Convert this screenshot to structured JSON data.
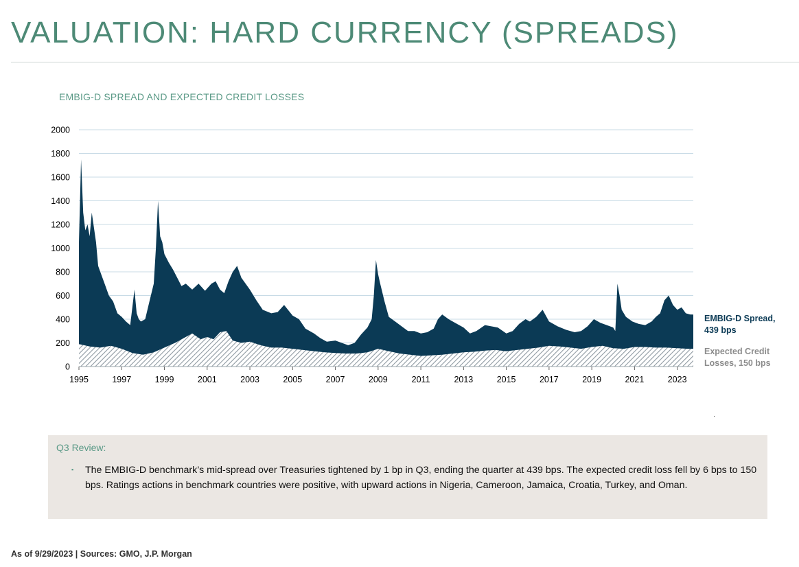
{
  "page": {
    "title": "VALUATION: HARD CURRENCY (SPREADS)",
    "footer": "As of 9/29/2023 | Sources: GMO, J.P. Morgan"
  },
  "colors": {
    "title": "#4d8a76",
    "accent_green": "#5b9a87",
    "spread_fill": "#0b3a55",
    "ecl_hatch": "#8f9aa2",
    "grid": "#c8dbe6",
    "review_bg": "#ebe7e3",
    "ecl_label": "#8c8c8c"
  },
  "review": {
    "title": "Q3 Review:",
    "bullet": "▪",
    "text": "The EMBIG-D benchmark’s mid-spread over Treasuries tightened by 1 bp in Q3, ending the quarter at 439 bps. The expected credit loss fell by 6 bps to 150 bps. Ratings actions in benchmark countries were positive, with upward actions in Nigeria, Cameroon, Jamaica, Croatia, Turkey, and Oman."
  },
  "chart_data": {
    "type": "area",
    "title": "EMBIG-D SPREAD AND EXPECTED CREDIT LOSSES",
    "xlabel": "",
    "ylabel": "",
    "xlim": [
      1995.0,
      2023.75
    ],
    "ylim": [
      0,
      2000
    ],
    "yticks": [
      0,
      200,
      400,
      600,
      800,
      1000,
      1200,
      1400,
      1600,
      1800,
      2000
    ],
    "xticks": [
      1995,
      1997,
      1999,
      2001,
      2003,
      2005,
      2007,
      2009,
      2011,
      2013,
      2015,
      2017,
      2019,
      2021,
      2023
    ],
    "grid": "horizontal",
    "series": [
      {
        "name": "EMBIG-D Spread",
        "end_label": [
          "EMBIG-D Spread,",
          "439 bps"
        ],
        "style": "solid",
        "x": [
          1995.0,
          1995.1,
          1995.2,
          1995.3,
          1995.4,
          1995.5,
          1995.6,
          1995.8,
          1995.9,
          1996.0,
          1996.2,
          1996.4,
          1996.6,
          1996.8,
          1997.0,
          1997.2,
          1997.4,
          1997.6,
          1997.7,
          1997.8,
          1997.9,
          1998.1,
          1998.3,
          1998.5,
          1998.6,
          1998.7,
          1998.8,
          1998.9,
          1999.0,
          1999.2,
          1999.4,
          1999.6,
          1999.8,
          2000.0,
          2000.3,
          2000.6,
          2000.9,
          2001.2,
          2001.4,
          2001.6,
          2001.8,
          2002.0,
          2002.2,
          2002.4,
          2002.6,
          2002.8,
          2003.0,
          2003.3,
          2003.6,
          2004.0,
          2004.3,
          2004.6,
          2005.0,
          2005.3,
          2005.6,
          2006.0,
          2006.3,
          2006.6,
          2007.0,
          2007.3,
          2007.6,
          2007.9,
          2008.2,
          2008.5,
          2008.7,
          2008.8,
          2008.9,
          2009.0,
          2009.1,
          2009.3,
          2009.5,
          2009.8,
          2010.1,
          2010.4,
          2010.7,
          2011.0,
          2011.3,
          2011.6,
          2011.8,
          2012.0,
          2012.3,
          2012.6,
          2013.0,
          2013.3,
          2013.6,
          2014.0,
          2014.3,
          2014.6,
          2015.0,
          2015.3,
          2015.6,
          2015.9,
          2016.1,
          2016.4,
          2016.7,
          2017.0,
          2017.4,
          2017.8,
          2018.2,
          2018.5,
          2018.8,
          2019.1,
          2019.4,
          2019.7,
          2020.0,
          2020.1,
          2020.2,
          2020.3,
          2020.4,
          2020.6,
          2020.9,
          2021.2,
          2021.5,
          2021.8,
          2022.0,
          2022.2,
          2022.4,
          2022.6,
          2022.8,
          2023.0,
          2023.2,
          2023.4,
          2023.6,
          2023.75
        ],
        "y": [
          1050,
          1750,
          1300,
          1150,
          1200,
          1100,
          1300,
          1050,
          850,
          800,
          700,
          600,
          550,
          450,
          420,
          380,
          350,
          650,
          450,
          400,
          380,
          400,
          550,
          700,
          1000,
          1400,
          1100,
          1050,
          950,
          880,
          820,
          750,
          680,
          700,
          650,
          700,
          640,
          700,
          720,
          650,
          620,
          720,
          800,
          850,
          750,
          700,
          650,
          560,
          480,
          450,
          460,
          520,
          430,
          400,
          320,
          280,
          240,
          210,
          220,
          200,
          180,
          200,
          270,
          330,
          400,
          600,
          900,
          780,
          700,
          550,
          420,
          380,
          340,
          300,
          300,
          280,
          290,
          320,
          400,
          440,
          400,
          370,
          330,
          280,
          300,
          350,
          340,
          330,
          280,
          300,
          360,
          400,
          380,
          420,
          480,
          380,
          340,
          310,
          290,
          300,
          340,
          400,
          370,
          350,
          330,
          300,
          700,
          600,
          480,
          420,
          380,
          360,
          350,
          380,
          420,
          450,
          560,
          600,
          520,
          480,
          500,
          450,
          440,
          439
        ]
      },
      {
        "name": "Expected Credit Losses",
        "end_label": [
          "Expected Credit",
          "Losses, 150 bps"
        ],
        "style": "hatched",
        "x": [
          1995.0,
          1995.5,
          1996.0,
          1996.5,
          1997.0,
          1997.5,
          1998.0,
          1998.5,
          1999.0,
          1999.5,
          2000.0,
          2000.3,
          2000.7,
          2001.0,
          2001.3,
          2001.6,
          2001.9,
          2002.2,
          2002.6,
          2003.0,
          2003.5,
          2004.0,
          2004.5,
          2005.0,
          2005.5,
          2006.0,
          2006.5,
          2007.0,
          2007.5,
          2008.0,
          2008.5,
          2009.0,
          2009.5,
          2010.0,
          2010.5,
          2011.0,
          2011.5,
          2012.0,
          2012.5,
          2013.0,
          2013.5,
          2014.0,
          2014.5,
          2015.0,
          2015.5,
          2016.0,
          2016.5,
          2017.0,
          2017.5,
          2018.0,
          2018.5,
          2019.0,
          2019.5,
          2020.0,
          2020.5,
          2021.0,
          2021.5,
          2022.0,
          2022.5,
          2023.0,
          2023.5,
          2023.75
        ],
        "y": [
          190,
          170,
          160,
          175,
          150,
          115,
          100,
          120,
          160,
          200,
          250,
          280,
          230,
          250,
          230,
          290,
          300,
          220,
          200,
          210,
          180,
          160,
          160,
          150,
          140,
          130,
          120,
          115,
          110,
          110,
          120,
          150,
          130,
          110,
          100,
          90,
          95,
          100,
          110,
          120,
          125,
          135,
          140,
          130,
          140,
          150,
          160,
          175,
          170,
          160,
          150,
          165,
          175,
          155,
          150,
          165,
          165,
          160,
          160,
          155,
          150,
          150
        ]
      }
    ]
  }
}
